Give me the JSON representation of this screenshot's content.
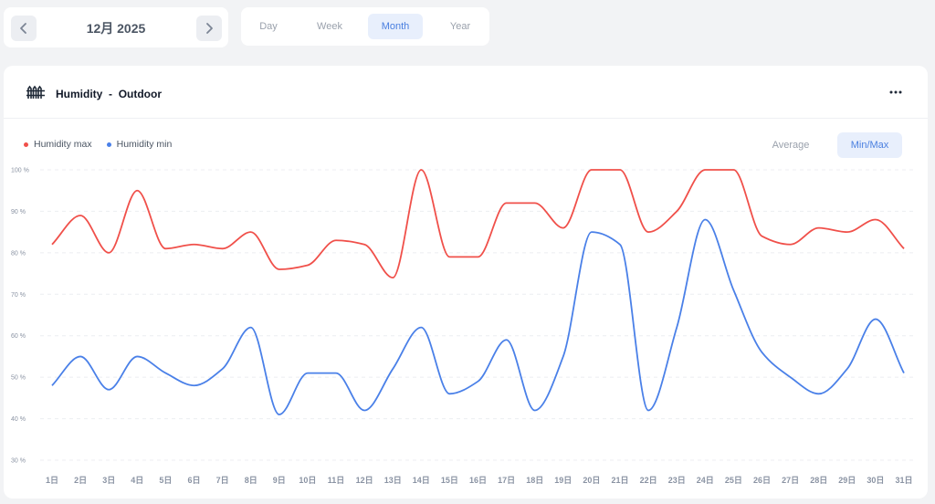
{
  "date_nav": {
    "label": "12月 2025"
  },
  "range_tabs": [
    "Day",
    "Week",
    "Month",
    "Year"
  ],
  "range_active": 2,
  "card": {
    "title": "Humidity",
    "separator": "-",
    "subtitle": "Outdoor",
    "icon": "fence-icon"
  },
  "modes": {
    "average_label": "Average",
    "minmax_label": "Min/Max",
    "active": "minmax"
  },
  "colors": {
    "max": "#f0504a",
    "min": "#4a80e8",
    "accent": "#4a7fe0"
  },
  "chart_data": {
    "type": "line",
    "x": [
      "1日",
      "2日",
      "3日",
      "4日",
      "5日",
      "6日",
      "7日",
      "8日",
      "9日",
      "10日",
      "11日",
      "12日",
      "13日",
      "14日",
      "15日",
      "16日",
      "17日",
      "18日",
      "19日",
      "20日",
      "21日",
      "22日",
      "23日",
      "24日",
      "25日",
      "26日",
      "27日",
      "28日",
      "29日",
      "30日",
      "31日"
    ],
    "series": [
      {
        "name": "Humidity max",
        "values": [
          82,
          89,
          80,
          95,
          81,
          82,
          81,
          85,
          76,
          77,
          83,
          82,
          74,
          100,
          79,
          79,
          92,
          92,
          86,
          100,
          100,
          85,
          90,
          100,
          100,
          84,
          82,
          86,
          85,
          88,
          81
        ]
      },
      {
        "name": "Humidity min",
        "values": [
          48,
          55,
          47,
          55,
          51,
          48,
          52,
          62,
          41,
          51,
          51,
          42,
          52,
          62,
          46,
          49,
          59,
          42,
          55,
          85,
          82,
          42,
          62,
          88,
          71,
          56,
          50,
          46,
          52,
          64,
          51
        ]
      }
    ],
    "ylim": [
      30,
      100
    ],
    "yticks": [
      30,
      40,
      50,
      60,
      70,
      80,
      90,
      100
    ],
    "ytick_labels": [
      "30 %",
      "40 %",
      "50 %",
      "60 %",
      "70 %",
      "80 %",
      "90 %",
      "100 %"
    ],
    "legend_position": "top-left",
    "grid": true
  }
}
